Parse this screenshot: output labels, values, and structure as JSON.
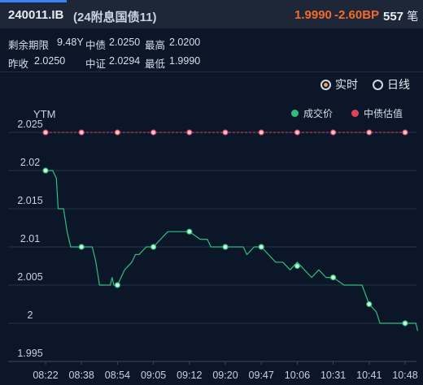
{
  "header": {
    "code": "240011.IB",
    "name": "(24附息国债11)",
    "price": "1.9990",
    "change_bp": "-2.60BP",
    "trade_count": "557",
    "trade_unit": "笔"
  },
  "info": {
    "remaining_label": "剩余期限",
    "remaining_value": "9.48Y",
    "cb_val_label": "中债",
    "cb_val_value": "2.0250",
    "high_label": "最高",
    "high_value": "2.0200",
    "prev_close_label": "昨收",
    "prev_close_value": "2.0250",
    "cs_label": "中证",
    "cs_value": "2.0294",
    "low_label": "最低",
    "low_value": "1.9990"
  },
  "toggle": {
    "realtime": "实时",
    "daily": "日线",
    "selected": "realtime"
  },
  "colors": {
    "trade": "#2ec07a",
    "valuation": "#e0445a",
    "price_up": "#f26b2c"
  },
  "chart_data": {
    "type": "line",
    "ylabel": "YTM",
    "ylim": [
      1.995,
      2.025
    ],
    "yticks": [
      "2.025",
      "2.02",
      "2.015",
      "2.01",
      "2.005",
      "2",
      "1.995"
    ],
    "xticks": [
      "08:22",
      "08:38",
      "08:54",
      "09:05",
      "09:12",
      "09:20",
      "09:47",
      "10:06",
      "10:31",
      "10:41",
      "10:48"
    ],
    "legend": [
      "成交价",
      "中债估值"
    ],
    "legend_position": "top-right",
    "series": [
      {
        "name": "成交价",
        "values": [
          [
            0.0,
            2.02
          ],
          [
            0.2,
            2.02
          ],
          [
            0.3,
            2.019
          ],
          [
            0.35,
            2.015
          ],
          [
            0.5,
            2.015
          ],
          [
            0.6,
            2.012
          ],
          [
            0.7,
            2.01
          ],
          [
            1.0,
            2.01
          ],
          [
            1.3,
            2.01
          ],
          [
            1.4,
            2.008
          ],
          [
            1.5,
            2.005
          ],
          [
            1.8,
            2.005
          ],
          [
            1.85,
            2.006
          ],
          [
            1.9,
            2.005
          ],
          [
            2.0,
            2.005
          ],
          [
            2.1,
            2.006
          ],
          [
            2.2,
            2.007
          ],
          [
            2.4,
            2.008
          ],
          [
            2.5,
            2.009
          ],
          [
            2.6,
            2.009
          ],
          [
            2.8,
            2.01
          ],
          [
            3.0,
            2.01
          ],
          [
            3.2,
            2.011
          ],
          [
            3.4,
            2.012
          ],
          [
            3.6,
            2.012
          ],
          [
            3.8,
            2.012
          ],
          [
            4.0,
            2.012
          ],
          [
            4.3,
            2.011
          ],
          [
            4.5,
            2.011
          ],
          [
            4.6,
            2.01
          ],
          [
            4.8,
            2.01
          ],
          [
            5.0,
            2.01
          ],
          [
            5.5,
            2.01
          ],
          [
            5.6,
            2.009
          ],
          [
            5.8,
            2.01
          ],
          [
            6.0,
            2.01
          ],
          [
            6.2,
            2.009
          ],
          [
            6.4,
            2.008
          ],
          [
            6.6,
            2.008
          ],
          [
            6.8,
            2.007
          ],
          [
            7.0,
            2.008
          ],
          [
            7.2,
            2.007
          ],
          [
            7.4,
            2.006
          ],
          [
            7.6,
            2.007
          ],
          [
            7.8,
            2.006
          ],
          [
            8.0,
            2.006
          ],
          [
            8.3,
            2.005
          ],
          [
            8.8,
            2.005
          ],
          [
            9.0,
            2.0025
          ],
          [
            9.2,
            2.0015
          ],
          [
            9.3,
            2.0
          ],
          [
            10.0,
            2.0
          ],
          [
            10.3,
            2.0
          ],
          [
            10.35,
            1.999
          ]
        ],
        "markers": [
          [
            0.0,
            2.02
          ],
          [
            1.0,
            2.01
          ],
          [
            2.0,
            2.005
          ],
          [
            3.0,
            2.01
          ],
          [
            4.0,
            2.012
          ],
          [
            5.0,
            2.01
          ],
          [
            6.0,
            2.01
          ],
          [
            7.0,
            2.0075
          ],
          [
            8.0,
            2.006
          ],
          [
            9.0,
            2.0025
          ],
          [
            10.0,
            2.0
          ]
        ]
      },
      {
        "name": "中债估值",
        "values": [
          [
            0,
            2.025
          ],
          [
            1,
            2.025
          ],
          [
            2,
            2.025
          ],
          [
            3,
            2.025
          ],
          [
            4,
            2.025
          ],
          [
            5,
            2.025
          ],
          [
            6,
            2.025
          ],
          [
            7,
            2.025
          ],
          [
            8,
            2.025
          ],
          [
            9,
            2.025
          ],
          [
            10,
            2.025
          ]
        ]
      }
    ]
  }
}
